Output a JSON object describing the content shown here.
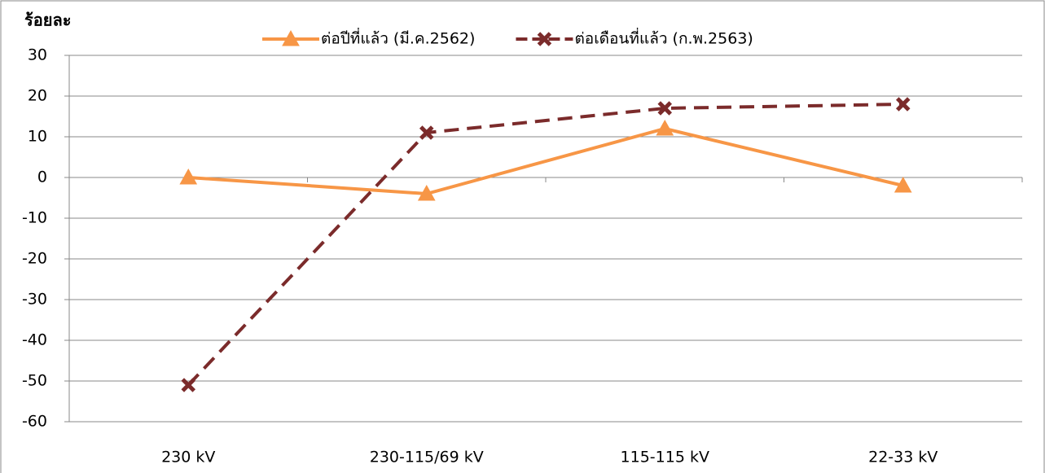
{
  "chart_data": {
    "type": "line",
    "y_label": "ร้อยละ",
    "categories": [
      "230 kV",
      "230-115/69 kV",
      "115-115 kV",
      "22-33 kV"
    ],
    "series": [
      {
        "name": "ต่อปีที่แล้ว (มี.ค.2562)",
        "color": "#f79646",
        "marker": "triangle",
        "dashed": false,
        "values": [
          0,
          -4,
          12,
          -2
        ]
      },
      {
        "name": "ต่อเดือนที่แล้ว (ก.พ.2563)",
        "color": "#7b2b2b",
        "marker": "x",
        "dashed": true,
        "values": [
          -51,
          11,
          17,
          18
        ]
      }
    ],
    "ylim": [
      -60,
      30
    ],
    "yticks": [
      -60,
      -50,
      -40,
      -30,
      -20,
      -10,
      0,
      10,
      20,
      30
    ],
    "grid": true,
    "legend": "top"
  }
}
